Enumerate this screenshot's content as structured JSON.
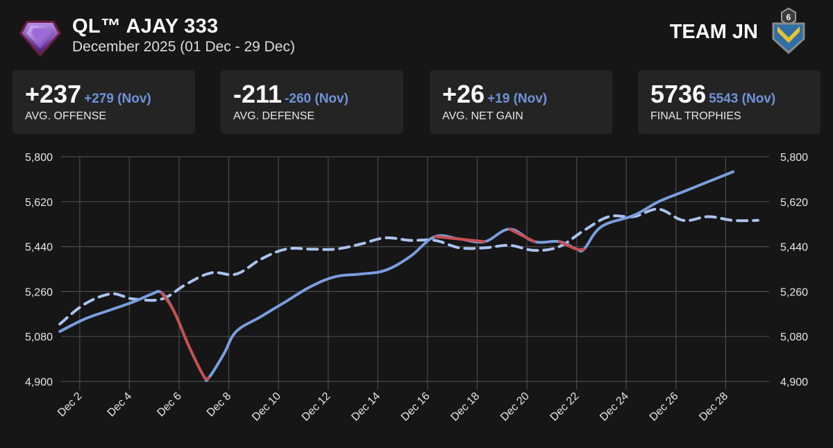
{
  "header": {
    "player_name": "QL™ AJAY 333",
    "period": "December 2025 (01 Dec - 29 Dec)",
    "team_name": "TEAM JN",
    "clan_level": "6",
    "league_icon": "purple-league-shield-icon",
    "clan_icon": "clan-shield-icon"
  },
  "stats": [
    {
      "value": "+237",
      "prev": "+279 (Nov)",
      "label": "AVG. OFFENSE"
    },
    {
      "value": "-211",
      "prev": "-260 (Nov)",
      "label": "AVG. DEFENSE"
    },
    {
      "value": "+26",
      "prev": "+19 (Nov)",
      "label": "AVG. NET GAIN"
    },
    {
      "value": "5736",
      "prev": "5543 (Nov)",
      "label": "FINAL TROPHIES"
    }
  ],
  "colors": {
    "background": "#161616",
    "card": "#242424",
    "accent": "#6f93db",
    "gain_line": "#7a9ee0",
    "loss_line": "#c65050",
    "previous_line": "#aac3f0",
    "grid": "#4a4a4a"
  },
  "chart_data": {
    "type": "line",
    "x_label_days": [
      2,
      4,
      6,
      8,
      10,
      12,
      14,
      16,
      18,
      20,
      22,
      24,
      26,
      28
    ],
    "x_tick_labels": [
      "Dec 2",
      "Dec 4",
      "Dec 6",
      "Dec 8",
      "Dec 10",
      "Dec 12",
      "Dec 14",
      "Dec 16",
      "Dec 18",
      "Dec 20",
      "Dec 22",
      "Dec 24",
      "Dec 26",
      "Dec 28"
    ],
    "xlim": [
      1.25,
      29.75
    ],
    "ylim": [
      4900,
      5800
    ],
    "y_ticks": [
      4900,
      5080,
      5260,
      5440,
      5620,
      5800
    ],
    "y_tick_labels": [
      "4,900",
      "5,080",
      "5,260",
      "5,440",
      "5,620",
      "5,800"
    ],
    "grid": true,
    "dual_y_axis": true,
    "series": [
      {
        "style": "solid",
        "x": [
          1.2,
          2.2,
          3.2,
          4.2,
          4.9,
          5.3,
          5.8,
          6.4,
          7.0,
          7.2,
          7.8,
          8.3,
          9.3,
          10.3,
          11.3,
          12.3,
          13.3,
          14.3,
          15.3,
          16.3,
          17.3,
          18.3,
          19.3,
          20.3,
          21.3,
          22.0,
          22.3,
          23.0,
          24.3,
          25.3,
          26.3,
          27.3,
          28.3
        ],
        "y": [
          5100,
          5150,
          5185,
          5220,
          5250,
          5255,
          5180,
          5040,
          4920,
          4915,
          5010,
          5100,
          5160,
          5220,
          5280,
          5320,
          5330,
          5345,
          5400,
          5480,
          5470,
          5460,
          5510,
          5460,
          5460,
          5430,
          5430,
          5520,
          5565,
          5620,
          5660,
          5700,
          5740
        ],
        "loss_segments": [
          [
            5.3,
            7.2
          ],
          [
            16.3,
            18.3
          ],
          [
            19.3,
            20.3
          ],
          [
            21.3,
            22.3
          ]
        ]
      },
      {
        "style": "dashed",
        "x": [
          1.2,
          2.2,
          3.2,
          3.8,
          4.2,
          5.3,
          6.3,
          7.3,
          8.3,
          9.3,
          10.3,
          11.3,
          12.3,
          13.3,
          14.3,
          15.3,
          16.3,
          17.3,
          18.3,
          19.3,
          20.3,
          21.3,
          22.3,
          23.3,
          24.3,
          25.3,
          26.3,
          27.3,
          28.3,
          29.3
        ],
        "y": [
          5130,
          5210,
          5250,
          5240,
          5230,
          5230,
          5290,
          5335,
          5330,
          5390,
          5430,
          5430,
          5430,
          5450,
          5475,
          5465,
          5465,
          5435,
          5435,
          5445,
          5425,
          5440,
          5505,
          5560,
          5560,
          5590,
          5545,
          5560,
          5545,
          5545
        ]
      }
    ]
  }
}
